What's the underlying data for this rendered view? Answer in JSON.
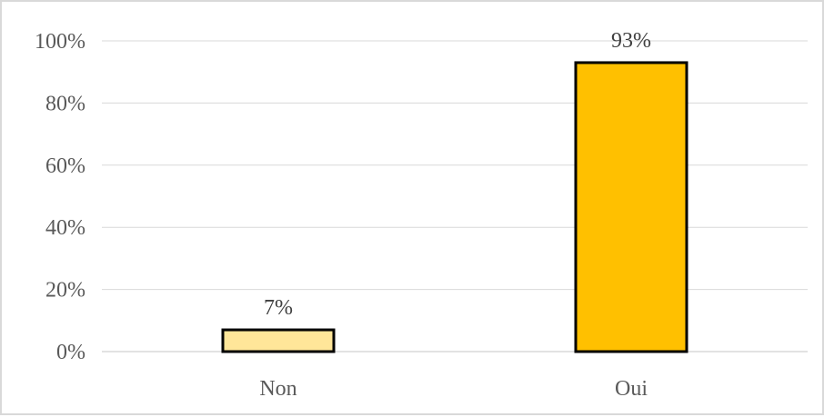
{
  "chart_data": {
    "type": "bar",
    "title": "",
    "xlabel": "",
    "ylabel": "",
    "categories": [
      "Non",
      "Oui"
    ],
    "values": [
      7,
      93
    ],
    "value_labels": [
      "7%",
      "93%"
    ],
    "ylim": [
      0,
      100
    ],
    "yticks": [
      0,
      20,
      40,
      60,
      80,
      100
    ],
    "ytick_labels": [
      "0%",
      "20%",
      "40%",
      "60%",
      "80%",
      "100%"
    ],
    "bar_colors": [
      "#FFE699",
      "#FFC000"
    ],
    "bar_edge_color": "#000000",
    "grid": true,
    "legend": "none"
  }
}
